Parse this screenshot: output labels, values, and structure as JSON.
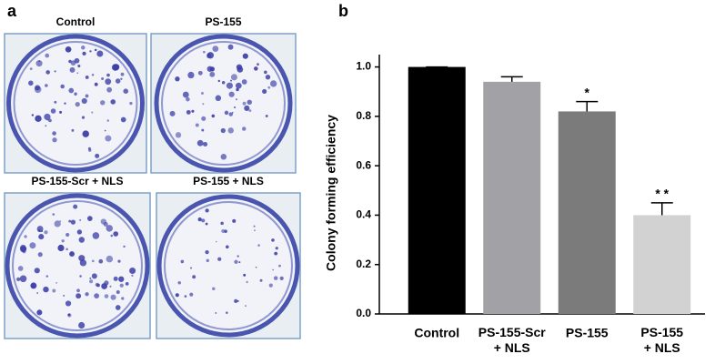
{
  "panel_a": {
    "label": "a",
    "plates": [
      "Control",
      "PS-155",
      "PS-155-Scr + NLS",
      "PS-155 + NLS"
    ]
  },
  "chart_data": {
    "type": "bar",
    "panel_label": "b",
    "y_label": "Colony forming efficiency",
    "categories": [
      "Control",
      "PS-155-Scr + NLS",
      "PS-155",
      "PS-155 + NLS"
    ],
    "values": [
      1.0,
      0.94,
      0.82,
      0.4
    ],
    "errors": [
      0,
      0.02,
      0.04,
      0.05
    ],
    "significance": [
      null,
      null,
      "*",
      "* *"
    ],
    "colors": [
      "#000000",
      "#a2a2a6",
      "#7b7b7b",
      "#d2d2d2"
    ],
    "ylim": [
      0,
      1.05
    ],
    "yticks": [
      {
        "value": 0,
        "label": "0.0"
      },
      {
        "value": 0.2,
        "label": "0.2"
      },
      {
        "value": 0.4,
        "label": "0.4"
      },
      {
        "value": 0.6,
        "label": "0.6"
      },
      {
        "value": 0.8,
        "label": "0.8"
      },
      {
        "value": 1.0,
        "label": "1.0"
      }
    ]
  }
}
